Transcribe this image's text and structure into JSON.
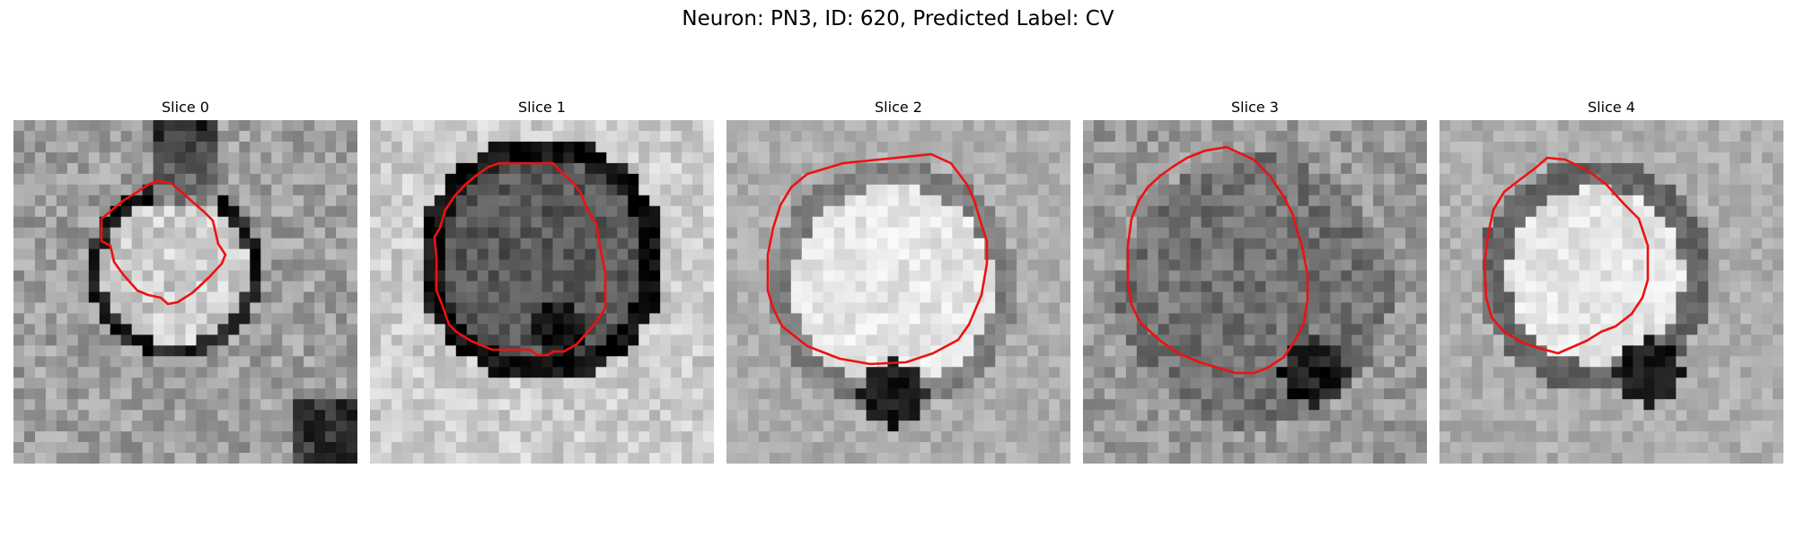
{
  "figure": {
    "title": "Neuron: PN3, ID: 620, Predicted Label: CV",
    "contour_color": "#ee1111",
    "grid_size": 32,
    "colormap": "gray",
    "panels": [
      {
        "title": "Slice 0"
      },
      {
        "title": "Slice 1"
      },
      {
        "title": "Slice 2"
      },
      {
        "title": "Slice 3"
      },
      {
        "title": "Slice 4"
      }
    ]
  }
}
